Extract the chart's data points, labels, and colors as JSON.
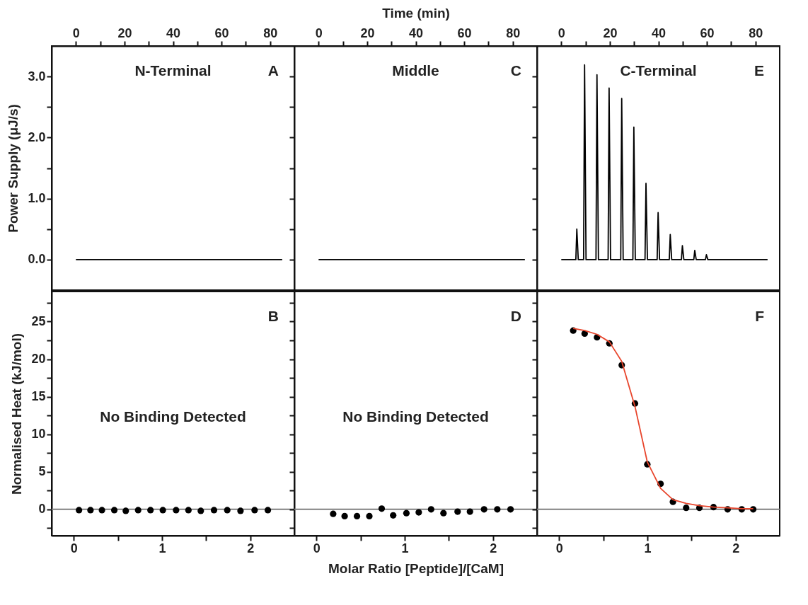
{
  "chart_data": [
    {
      "type": "line",
      "title": "N-Terminal",
      "ylabel": "Power Supply (μJ/s)",
      "annotations": [
        "A"
      ],
      "xlim": [
        -10,
        90
      ],
      "ylim": [
        -0.5,
        3.5
      ],
      "xticks": [
        0,
        {
          "value": 10,
          "label": null
        },
        20,
        {
          "value": 30,
          "label": null
        },
        40,
        {
          "value": 50,
          "label": null
        },
        60,
        {
          "value": 70,
          "label": null
        },
        80
      ],
      "yticks": [
        {
          "value": 0,
          "label": "0.0"
        },
        {
          "value": 0.5,
          "label": null
        },
        {
          "value": 1,
          "label": "1.0"
        },
        {
          "value": 1.5,
          "label": null
        },
        {
          "value": 2,
          "label": "2.0"
        },
        {
          "value": 2.5,
          "label": null
        },
        {
          "value": 3,
          "label": "3.0"
        }
      ],
      "series": [
        {
          "color": "#000000",
          "x": [
            0,
            85
          ],
          "values": [
            0,
            0
          ]
        }
      ]
    },
    {
      "type": "line",
      "title": "Middle",
      "xlabel": "Time (min)",
      "annotations": [
        "C"
      ],
      "tick_labels": "x",
      "xlim": [
        -10,
        90
      ],
      "ylim": [
        -0.5,
        3.5
      ],
      "xticks": [
        0,
        {
          "value": 10,
          "label": null
        },
        20,
        {
          "value": 30,
          "label": null
        },
        40,
        {
          "value": 50,
          "label": null
        },
        60,
        {
          "value": 70,
          "label": null
        },
        80
      ],
      "yticks": [
        0,
        0.5,
        1,
        1.5,
        2,
        2.5,
        3
      ],
      "series": [
        {
          "color": "#000000",
          "x": [
            0,
            85
          ],
          "values": [
            0,
            0
          ]
        }
      ]
    },
    {
      "type": "line",
      "title": "C-Terminal",
      "annotations": [
        "E"
      ],
      "tick_labels": "x",
      "xlim": [
        -10,
        90
      ],
      "ylim": [
        -0.5,
        3.5
      ],
      "xticks": [
        0,
        {
          "value": 10,
          "label": null
        },
        20,
        {
          "value": 30,
          "label": null
        },
        40,
        {
          "value": 50,
          "label": null
        },
        60,
        {
          "value": 70,
          "label": null
        },
        80
      ],
      "yticks": [
        0,
        0.5,
        1,
        1.5,
        2,
        2.5,
        3
      ],
      "series": [
        {
          "color": "#000000",
          "x": [
            0,
            6.0,
            6.4,
            7.0,
            9.2,
            9.6,
            10.2,
            14.3,
            14.7,
            15.3,
            19.3,
            19.7,
            20.3,
            24.5,
            24.9,
            25.5,
            29.5,
            29.9,
            30.5,
            34.5,
            34.9,
            35.5,
            39.5,
            39.9,
            40.5,
            44.5,
            44.9,
            45.5,
            49.5,
            49.9,
            50.5,
            54.6,
            55.0,
            55.6,
            59.4,
            59.8,
            60.4,
            85
          ],
          "values": [
            0,
            0,
            0.5,
            0,
            0,
            3.19,
            0,
            0,
            3.03,
            0,
            0,
            2.81,
            0,
            0,
            2.64,
            0,
            0,
            2.17,
            0,
            0,
            1.25,
            0,
            0,
            0.77,
            0,
            0,
            0.41,
            0,
            0,
            0.23,
            0,
            0,
            0.15,
            0,
            0,
            0.08,
            0,
            0
          ]
        }
      ]
    },
    {
      "type": "scatter",
      "ylabel": "Normalised Heat (kJ/mol)",
      "annotations": [
        "B",
        "No Binding Detected"
      ],
      "marker": "circle",
      "xlim": [
        -0.25,
        2.5
      ],
      "ylim": [
        -3.5,
        29
      ],
      "xticks": [
        0,
        {
          "value": 0.5,
          "label": null
        },
        1,
        {
          "value": 1.5,
          "label": null
        },
        2
      ],
      "yticks": [
        {
          "value": -2.5,
          "label": null
        },
        0,
        {
          "value": 2.5,
          "label": null
        },
        5,
        {
          "value": 7.5,
          "label": null
        },
        10,
        {
          "value": 12.5,
          "label": null
        },
        15,
        {
          "value": 17.5,
          "label": null
        },
        20,
        {
          "value": 22.5,
          "label": null
        },
        25,
        {
          "value": 27.5,
          "label": null
        }
      ],
      "ref_lines": [
        {
          "axis": "y",
          "value": 0,
          "color": "#808080"
        }
      ],
      "series": [
        {
          "color": "#000000",
          "x": [
            0.06,
            0.19,
            0.32,
            0.46,
            0.59,
            0.73,
            0.87,
            1.01,
            1.16,
            1.3,
            1.44,
            1.59,
            1.74,
            1.89,
            2.05,
            2.2
          ],
          "values": [
            -0.1,
            -0.1,
            -0.1,
            -0.1,
            -0.2,
            -0.1,
            -0.1,
            -0.1,
            -0.1,
            -0.1,
            -0.2,
            -0.1,
            -0.1,
            -0.2,
            -0.1,
            -0.1
          ]
        }
      ]
    },
    {
      "type": "scatter",
      "xlabel": "Molar Ratio [Peptide]/[CaM]",
      "annotations": [
        "D",
        "No Binding Detected"
      ],
      "marker": "circle",
      "tick_labels": "x",
      "xlim": [
        -0.25,
        2.5
      ],
      "ylim": [
        -3.5,
        29
      ],
      "xticks": [
        0,
        {
          "value": 0.5,
          "label": null
        },
        1,
        {
          "value": 1.5,
          "label": null
        },
        2
      ],
      "yticks": [
        -2.5,
        0,
        2.5,
        5,
        7.5,
        10,
        12.5,
        15,
        17.5,
        20,
        22.5,
        25,
        27.5
      ],
      "ref_lines": [
        {
          "axis": "y",
          "value": 0,
          "color": "#808080"
        }
      ],
      "series": [
        {
          "color": "#000000",
          "x": [
            0.19,
            0.32,
            0.46,
            0.6,
            0.74,
            0.87,
            1.02,
            1.16,
            1.3,
            1.44,
            1.6,
            1.74,
            1.9,
            2.05,
            2.2
          ],
          "values": [
            -0.6,
            -0.9,
            -0.9,
            -0.9,
            0.1,
            -0.8,
            -0.5,
            -0.4,
            0,
            -0.5,
            -0.3,
            -0.3,
            0,
            0,
            0
          ]
        }
      ]
    },
    {
      "type": "scatter",
      "annotations": [
        "F"
      ],
      "tick_labels": "x",
      "xlim": [
        -0.25,
        2.5
      ],
      "ylim": [
        -3.5,
        29
      ],
      "xticks": [
        0,
        {
          "value": 0.5,
          "label": null
        },
        1,
        {
          "value": 1.5,
          "label": null
        },
        2
      ],
      "yticks": [
        -2.5,
        0,
        2.5,
        5,
        7.5,
        10,
        12.5,
        15,
        17.5,
        20,
        22.5,
        25,
        27.5
      ],
      "ref_lines": [
        {
          "axis": "y",
          "value": 0,
          "color": "#808080"
        }
      ],
      "series": [
        {
          "color": "#000000",
          "marker": "circle",
          "x": [
            0.16,
            0.29,
            0.43,
            0.57,
            0.71,
            0.86,
            1.0,
            1.15,
            1.29,
            1.44,
            1.59,
            1.75,
            1.91,
            2.07,
            2.2
          ],
          "values": [
            23.8,
            23.4,
            22.9,
            22.1,
            19.2,
            14.1,
            6.0,
            3.4,
            1.0,
            0.2,
            0.2,
            0.3,
            0,
            0,
            0
          ]
        },
        {
          "type": "line",
          "marker": "none",
          "color": "#e8452c",
          "x": [
            0.16,
            0.29,
            0.43,
            0.57,
            0.71,
            0.86,
            1.0,
            1.15,
            1.29,
            1.44,
            1.59,
            1.75,
            1.91,
            2.07,
            2.2
          ],
          "values": [
            24.1,
            23.8,
            23.3,
            22.3,
            19.7,
            13.7,
            6.3,
            2.8,
            1.3,
            0.8,
            0.5,
            0.3,
            0.2,
            0.1,
            0.1
          ]
        }
      ]
    }
  ]
}
